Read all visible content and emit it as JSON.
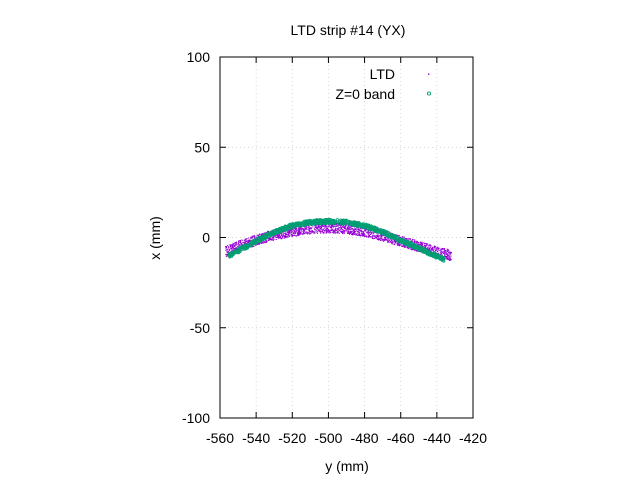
{
  "chart_data": {
    "type": "scatter",
    "title": "LTD strip #14 (YX)",
    "xlabel": "y (mm)",
    "ylabel": "x (mm)",
    "xlim": [
      -560,
      -420
    ],
    "ylim": [
      -100,
      100
    ],
    "xticks": [
      -560,
      -540,
      -520,
      -500,
      -480,
      -460,
      -440,
      -420
    ],
    "yticks": [
      -100,
      -50,
      0,
      50,
      100
    ],
    "grid": true,
    "legend_position": "top-right",
    "series": [
      {
        "name": "LTD",
        "color": "#9400d3",
        "marker": "dot",
        "band": {
          "y_range": [
            -557,
            -432
          ],
          "profile": [
            [
              -557,
              -8
            ],
            [
              -550,
              -5
            ],
            [
              -540,
              -1.5
            ],
            [
              -530,
              1.5
            ],
            [
              -520,
              3.5
            ],
            [
              -510,
              5
            ],
            [
              -500,
              5.5
            ],
            [
              -490,
              5
            ],
            [
              -480,
              3.5
            ],
            [
              -470,
              1
            ],
            [
              -460,
              -2
            ],
            [
              -450,
              -5
            ],
            [
              -440,
              -8
            ],
            [
              -432,
              -10
            ]
          ],
          "spread_mm": [
            -3,
            3
          ]
        }
      },
      {
        "name": "Z=0 band",
        "color": "#009e73",
        "marker": "circle",
        "band": {
          "y_range": [
            -555,
            -436
          ],
          "profile": [
            [
              -555,
              -10
            ],
            [
              -550,
              -7.5
            ],
            [
              -540,
              -2
            ],
            [
              -530,
              3
            ],
            [
              -520,
              6.5
            ],
            [
              -510,
              8.5
            ],
            [
              -500,
              9
            ],
            [
              -490,
              8.5
            ],
            [
              -480,
              6.5
            ],
            [
              -470,
              3
            ],
            [
              -460,
              -1.5
            ],
            [
              -450,
              -6
            ],
            [
              -440,
              -10.5
            ],
            [
              -436,
              -12
            ]
          ],
          "spread_mm": [
            -1.2,
            1.2
          ]
        }
      }
    ]
  }
}
